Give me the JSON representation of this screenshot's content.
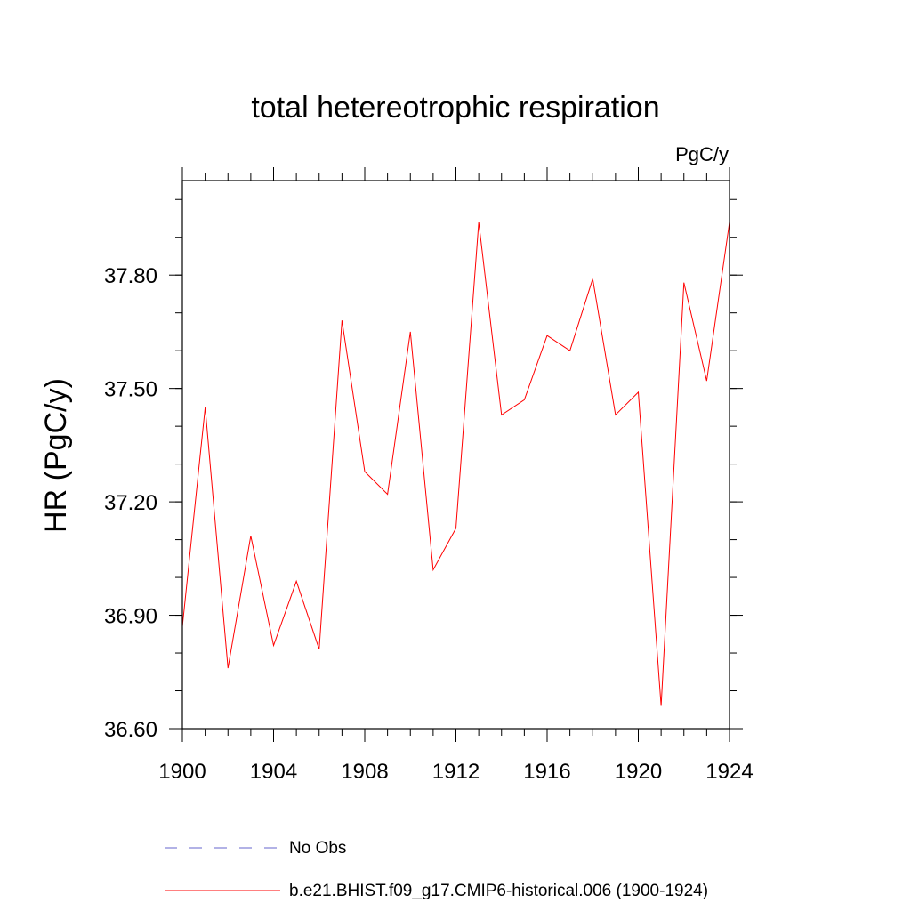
{
  "chart_data": {
    "type": "line",
    "title": "total hetereotrophic respiration",
    "units": "PgC/y",
    "ylabel": "HR  (PgC/y)",
    "xlabel": "",
    "xlim": [
      1900,
      1924
    ],
    "ylim": [
      36.6,
      38.05
    ],
    "xticks": [
      1900,
      1904,
      1908,
      1912,
      1916,
      1920,
      1924
    ],
    "xtick_labels": [
      "1900",
      "1904",
      "1908",
      "1912",
      "1916",
      "1920",
      "1924"
    ],
    "xminor_step": 1,
    "yticks": [
      36.6,
      36.9,
      37.2,
      37.5,
      37.8
    ],
    "ytick_labels": [
      "36.60",
      "36.90",
      "37.20",
      "37.50",
      "37.80"
    ],
    "yminor_step": 0.1,
    "grid": false,
    "legend_position": "bottom-left",
    "series": [
      {
        "name": "No Obs",
        "color": "#6666cc",
        "style": "dashed",
        "x": [],
        "values": []
      },
      {
        "name": "b.e21.BHIST.f09_g17.CMIP6-historical.006 (1900-1924)",
        "color": "#ff0000",
        "style": "solid",
        "x": [
          1900,
          1901,
          1902,
          1903,
          1904,
          1905,
          1906,
          1907,
          1908,
          1909,
          1910,
          1911,
          1912,
          1913,
          1914,
          1915,
          1916,
          1917,
          1918,
          1919,
          1920,
          1921,
          1922,
          1923,
          1924
        ],
        "values": [
          36.87,
          37.45,
          36.76,
          37.11,
          36.82,
          36.99,
          36.81,
          37.68,
          37.28,
          37.22,
          37.65,
          37.02,
          37.13,
          37.94,
          37.43,
          37.47,
          37.64,
          37.6,
          37.79,
          37.43,
          37.49,
          36.66,
          37.78,
          37.52,
          37.94
        ]
      }
    ]
  }
}
